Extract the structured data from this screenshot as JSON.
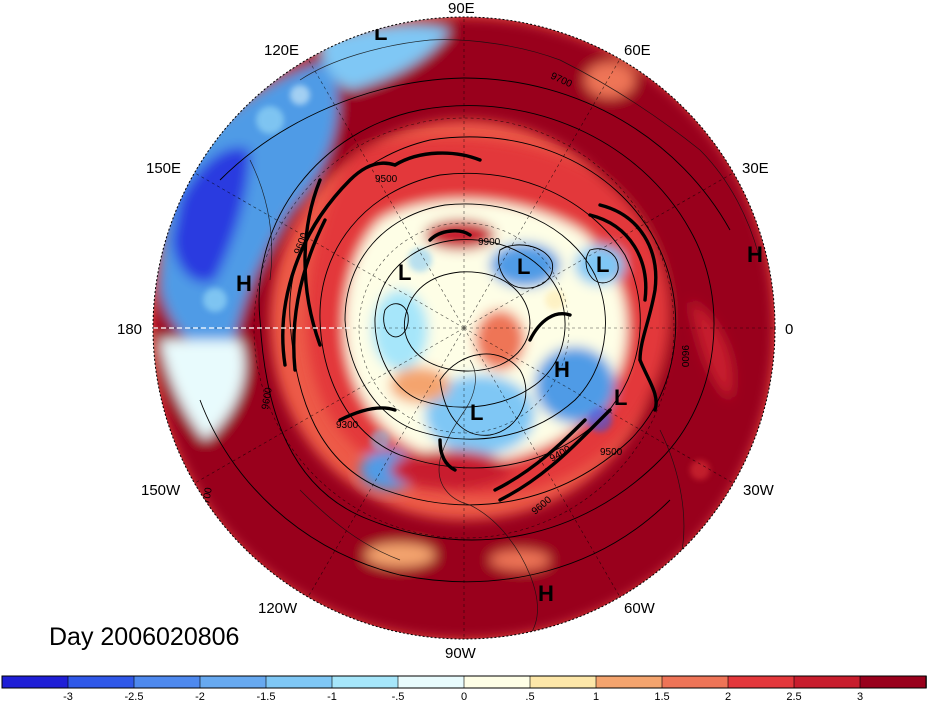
{
  "map": {
    "projection": "north-polar-stereographic",
    "longitude_labels": [
      "90E",
      "120E",
      "60E",
      "150E",
      "30E",
      "180",
      "0",
      "150W",
      "30W",
      "120W",
      "60W",
      "90W"
    ],
    "pressure_centers": [
      {
        "type": "L",
        "label": "L"
      },
      {
        "type": "L",
        "label": "L"
      },
      {
        "type": "L",
        "label": "L"
      },
      {
        "type": "L",
        "label": "L"
      },
      {
        "type": "L",
        "label": "L"
      },
      {
        "type": "L",
        "label": "L"
      },
      {
        "type": "H",
        "label": "H"
      },
      {
        "type": "H",
        "label": "H"
      },
      {
        "type": "H",
        "label": "H"
      },
      {
        "type": "H",
        "label": "H"
      }
    ],
    "contour_labels": [
      "9700",
      "9600",
      "9500",
      "9900",
      "9300",
      "9600",
      "9400",
      "9500",
      "9600",
      "9700",
      "9600"
    ],
    "field_colors": {
      "ocean_warm": "#99001c",
      "warm_mid": "#d8262b",
      "cool_mid": "#4f9be6",
      "cold": "#2a3be0",
      "neutral": "#fefee6"
    }
  },
  "date_label": "Day 2006020806",
  "colorbar": {
    "tick_labels": [
      "-3",
      "-2.5",
      "-2",
      "-1.5",
      "-1",
      "-.5",
      "0",
      ".5",
      "1",
      "1.5",
      "2",
      "2.5",
      "3"
    ],
    "colors": [
      "#1f1fd6",
      "#2f58e8",
      "#4e89ee",
      "#67a9f0",
      "#7fc7f5",
      "#a6e6fa",
      "#e8fbfd",
      "#fefee6",
      "#fde7a9",
      "#f4a46e",
      "#ee7457",
      "#e3373b",
      "#c81d2d",
      "#99001c"
    ]
  }
}
